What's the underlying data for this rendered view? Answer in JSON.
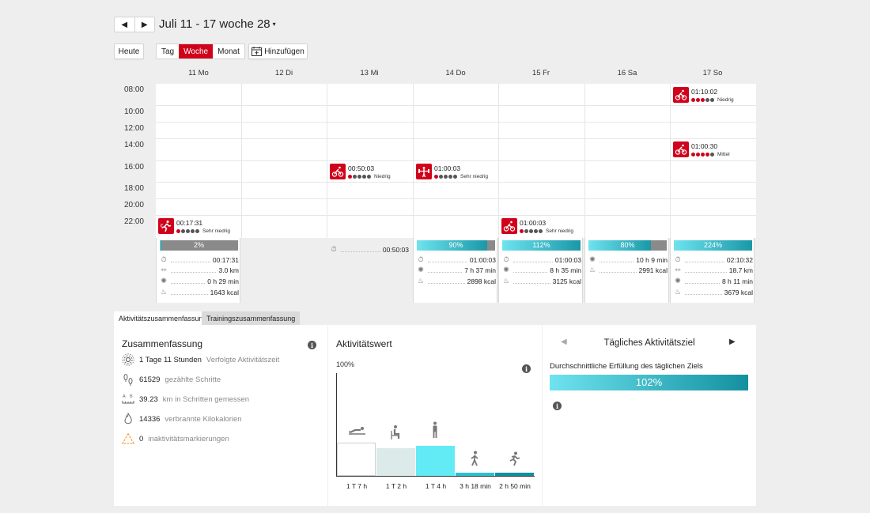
{
  "header": {
    "prev_label": "◀",
    "next_label": "▶",
    "period_title": "Juli 11 - 17 woche 28",
    "period_caret": "▾"
  },
  "toolbar": {
    "today_label": "Heute",
    "view_tabs": [
      "Tag",
      "Woche",
      "Monat"
    ],
    "active_view": "Woche",
    "add_label": "Hinzufügen"
  },
  "calendar": {
    "days": [
      "11 Mo",
      "12 Di",
      "13 Mi",
      "14 Do",
      "15 Fr",
      "16 Sa",
      "17 So"
    ],
    "times": [
      "08:00",
      "10:00",
      "12:00",
      "14:00",
      "16:00",
      "18:00",
      "20:00",
      "22:00"
    ],
    "events": [
      {
        "day": "17 So",
        "icon": "cycling-icon",
        "duration": "01:10:02",
        "intensity_filled": 3,
        "intensity": "Niedrig"
      },
      {
        "day": "17 So",
        "icon": "cycling-icon",
        "duration": "01:00:30",
        "intensity_filled": 4,
        "intensity": "Mittel"
      },
      {
        "day": "13 Mi",
        "icon": "cycling-icon",
        "duration": "00:50:03",
        "intensity_filled": 1,
        "intensity": "Niedrig"
      },
      {
        "day": "14 Do",
        "icon": "strength-icon",
        "duration": "01:00:03",
        "intensity_filled": 1,
        "intensity": "Sehr niedrig"
      },
      {
        "day": "11 Mo",
        "icon": "running-icon",
        "duration": "00:17:31",
        "intensity_filled": 1,
        "intensity": "Sehr niedrig"
      },
      {
        "day": "15 Fr",
        "icon": "cycling-icon",
        "duration": "01:00:03",
        "intensity_filled": 1,
        "intensity": "Sehr niedrig"
      }
    ]
  },
  "day_summaries": [
    {
      "day": "11 Mo",
      "percent": "2%",
      "goal_fraction": 0.02,
      "duration": "00:17:31",
      "distance": "3.0 km",
      "active_time": "0 h 29 min",
      "calories": "1643 kcal"
    },
    {
      "day": "12 Di"
    },
    {
      "day": "13 Mi",
      "duration": "00:50:03"
    },
    {
      "day": "14 Do",
      "percent": "90%",
      "goal_fraction": 0.9,
      "duration": "01:00:03",
      "active_time": "7 h 37 min",
      "calories": "2898 kcal"
    },
    {
      "day": "15 Fr",
      "percent": "112%",
      "goal_fraction": 1.0,
      "duration": "01:00:03",
      "active_time": "8 h 35 min",
      "calories": "3125 kcal"
    },
    {
      "day": "16 Sa",
      "percent": "80%",
      "goal_fraction": 0.8,
      "active_time": "10 h 9 min",
      "calories": "2991 kcal"
    },
    {
      "day": "17 So",
      "percent": "224%",
      "goal_fraction": 1.0,
      "duration": "02:10:32",
      "distance": "18.7 km",
      "active_time": "8 h 11 min",
      "calories": "3679 kcal"
    }
  ],
  "tabs": {
    "activity_summary": "Aktivitätszusammenfassung",
    "training_summary": "Trainingszusammenfassung"
  },
  "summary": {
    "title": "Zusammenfassung",
    "rows": [
      {
        "icon": "activity-time-icon",
        "value": "1 Tage 11 Stunden",
        "label": "Verfolgte Aktivitätszeit"
      },
      {
        "icon": "steps-icon",
        "value": "61529",
        "label": "gezählte Schritte"
      },
      {
        "icon": "distance-icon",
        "value": "39.23",
        "label": "km in Schritten gemessen"
      },
      {
        "icon": "calories-icon",
        "value": "14336",
        "label": "verbrannte Kilokalorien"
      },
      {
        "icon": "inactivity-icon",
        "value": "0",
        "label": "inaktivitätsmarkierungen"
      }
    ]
  },
  "activity_value": {
    "title": "Aktivitätswert",
    "y_top_label": "100%",
    "chart_data": {
      "type": "bar",
      "categories": [
        "Liegen",
        "Sitzen",
        "Stehen",
        "Gehen",
        "Laufen"
      ],
      "values": [
        0.32,
        0.27,
        0.29,
        0.03,
        0.03
      ],
      "tick_labels": [
        "1 T 7 h",
        "1 T 2 h",
        "1 T 4 h",
        "3 h 18 min",
        "2 h 50 min"
      ],
      "colors": [
        "#ffffff",
        "#dcebea",
        "#62ebf5",
        "#2bc0d0",
        "#13909f"
      ]
    }
  },
  "daily_goal": {
    "title": "Tägliches Aktivitätsziel",
    "subtitle": "Durchschnittliche Erfüllung des täglichen Ziels",
    "value": "102%",
    "prev_label": "◀",
    "next_label": "▶"
  },
  "info_label": "i"
}
